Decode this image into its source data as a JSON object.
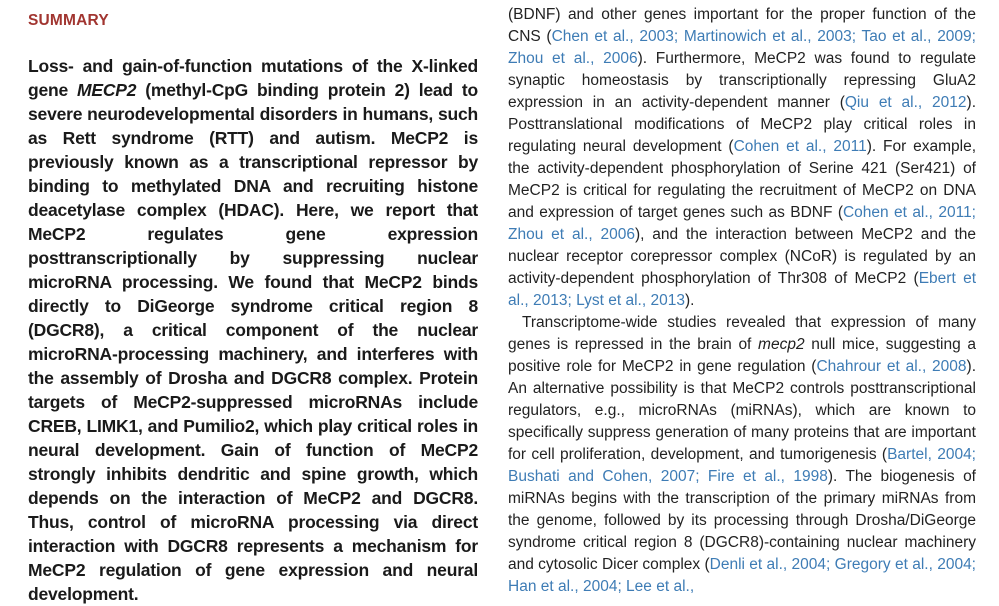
{
  "theme": {
    "heading_color": "#a13530",
    "link_color": "#3e7cb5",
    "text_color": "#1a1a1a",
    "page_background": "#ffffff"
  },
  "summary": {
    "heading": "SUMMARY",
    "paragraph": [
      {
        "t": "text",
        "s": "Loss- and gain-of-function mutations of the X-linked gene "
      },
      {
        "t": "italic",
        "s": "MECP2"
      },
      {
        "t": "text",
        "s": " (methyl-CpG binding protein 2) lead to severe neurodevelopmental disorders in humans, such as Rett syndrome (RTT) and autism. MeCP2 is previously known as a transcriptional repressor by binding to methylated DNA and recruiting histone deacetylase complex (HDAC). Here, we report that MeCP2 regulates gene expression posttranscriptionally by suppressing nuclear microRNA processing. We found that MeCP2 binds directly to DiGeorge syndrome critical region 8 (DGCR8), a critical component of the nuclear microRNA-processing machinery, and interferes with the assembly of Drosha and DGCR8 complex. Protein targets of MeCP2-suppressed microRNAs include CREB, LIMK1, and Pumilio2, which play critical roles in neural development. Gain of function of MeCP2 strongly inhibits dendritic and spine growth, which depends on the interaction of MeCP2 and DGCR8. Thus, control of microRNA processing via direct interaction with DGCR8 represents a mechanism for MeCP2 regulation of gene expression and neural development."
      }
    ]
  },
  "body": {
    "paragraphs": [
      {
        "indent": false,
        "segments": [
          {
            "t": "text",
            "s": "(BDNF) and other genes important for the proper function of the CNS ("
          },
          {
            "t": "link",
            "s": "Chen et al., 2003; Martinowich et al., 2003; Tao et al., 2009; Zhou et al., 2006"
          },
          {
            "t": "text",
            "s": "). Furthermore, MeCP2 was found to regulate synaptic homeostasis by transcriptionally repressing GluA2 expression in an activity-dependent manner ("
          },
          {
            "t": "link",
            "s": "Qiu et al., 2012"
          },
          {
            "t": "text",
            "s": "). Posttranslational modifications of MeCP2 play critical roles in regulating neural development ("
          },
          {
            "t": "link",
            "s": "Cohen et al., 2011"
          },
          {
            "t": "text",
            "s": "). For example, the activity-dependent phosphorylation of Serine 421 (Ser421) of MeCP2 is critical for regulating the recruitment of MeCP2 on DNA and expression of target genes such as BDNF ("
          },
          {
            "t": "link",
            "s": "Cohen et al., 2011; Zhou et al., 2006"
          },
          {
            "t": "text",
            "s": "), and the interaction between MeCP2 and the nuclear receptor corepressor complex (NCoR) is regulated by an activity-dependent phosphorylation of Thr308 of MeCP2 ("
          },
          {
            "t": "link",
            "s": "Ebert et al., 2013; Lyst et al., 2013"
          },
          {
            "t": "text",
            "s": ")."
          }
        ]
      },
      {
        "indent": true,
        "segments": [
          {
            "t": "text",
            "s": "Transcriptome-wide studies revealed that expression of many genes is repressed in the brain of "
          },
          {
            "t": "italic",
            "s": "mecp2"
          },
          {
            "t": "text",
            "s": " null mice, suggesting a positive role for MeCP2 in gene regulation ("
          },
          {
            "t": "link",
            "s": "Chahrour et al., 2008"
          },
          {
            "t": "text",
            "s": "). An alternative possibility is that MeCP2 controls posttranscriptional regulators, e.g., microRNAs (miRNAs), which are known to specifically suppress generation of many proteins that are important for cell proliferation, development, and tumorigenesis ("
          },
          {
            "t": "link",
            "s": "Bartel, 2004; Bushati and Cohen, 2007; Fire et al., 1998"
          },
          {
            "t": "text",
            "s": "). The biogenesis of miRNAs begins with the transcription of the primary miRNAs from the genome, followed by its processing through Drosha/DiGeorge syndrome critical region 8 (DGCR8)-containing nuclear machinery and cytosolic Dicer complex ("
          },
          {
            "t": "link",
            "s": "Denli et al., 2004; Gregory et al., 2004; Han et al., 2004; Lee et al.,"
          }
        ]
      }
    ]
  }
}
